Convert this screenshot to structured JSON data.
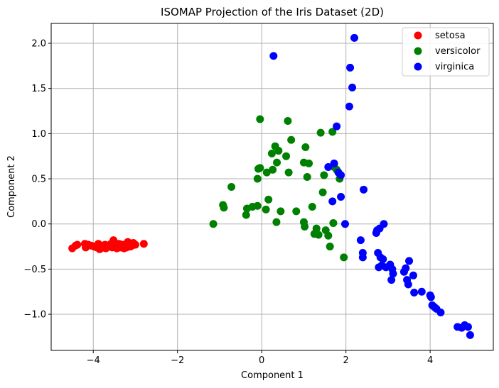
{
  "chart_data": {
    "type": "scatter",
    "title": "ISOMAP Projection of the Iris Dataset (2D)",
    "xlabel": "Component 1",
    "ylabel": "Component 2",
    "xlim": [
      -5.0,
      5.5
    ],
    "ylim": [
      -1.4,
      2.22
    ],
    "xticks": [
      -4,
      -2,
      0,
      2,
      4
    ],
    "xtick_labels": [
      "−4",
      "−2",
      "0",
      "2",
      "4"
    ],
    "yticks": [
      -1.0,
      -0.5,
      0.0,
      0.5,
      1.0,
      1.5,
      2.0
    ],
    "ytick_labels": [
      "−1.0",
      "−0.5",
      "0.0",
      "0.5",
      "1.0",
      "1.5",
      "2.0"
    ],
    "grid": true,
    "legend_position": "top-right",
    "series": [
      {
        "name": "setosa",
        "color": "#ff0000",
        "points": [
          [
            -4.5,
            -0.27
          ],
          [
            -4.42,
            -0.24
          ],
          [
            -4.38,
            -0.23
          ],
          [
            -4.2,
            -0.22
          ],
          [
            -4.18,
            -0.26
          ],
          [
            -4.12,
            -0.23
          ],
          [
            -4.05,
            -0.24
          ],
          [
            -3.98,
            -0.25
          ],
          [
            -3.92,
            -0.26
          ],
          [
            -3.88,
            -0.22
          ],
          [
            -3.85,
            -0.28
          ],
          [
            -3.82,
            -0.27
          ],
          [
            -3.8,
            -0.25
          ],
          [
            -3.78,
            -0.24
          ],
          [
            -3.75,
            -0.26
          ],
          [
            -3.72,
            -0.23
          ],
          [
            -3.7,
            -0.27
          ],
          [
            -3.66,
            -0.25
          ],
          [
            -3.62,
            -0.24
          ],
          [
            -3.58,
            -0.22
          ],
          [
            -3.55,
            -0.26
          ],
          [
            -3.52,
            -0.18
          ],
          [
            -3.5,
            -0.25
          ],
          [
            -3.47,
            -0.23
          ],
          [
            -3.44,
            -0.27
          ],
          [
            -3.42,
            -0.24
          ],
          [
            -3.39,
            -0.22
          ],
          [
            -3.36,
            -0.26
          ],
          [
            -3.33,
            -0.25
          ],
          [
            -3.3,
            -0.23
          ],
          [
            -3.27,
            -0.27
          ],
          [
            -3.24,
            -0.24
          ],
          [
            -3.21,
            -0.26
          ],
          [
            -3.18,
            -0.2
          ],
          [
            -3.15,
            -0.22
          ],
          [
            -3.12,
            -0.25
          ],
          [
            -3.08,
            -0.24
          ],
          [
            -3.05,
            -0.21
          ],
          [
            -3.0,
            -0.23
          ],
          [
            -2.8,
            -0.22
          ]
        ]
      },
      {
        "name": "versicolor",
        "color": "#008000",
        "points": [
          [
            -1.15,
            0.0
          ],
          [
            -0.92,
            0.21
          ],
          [
            -0.9,
            0.18
          ],
          [
            -0.72,
            0.41
          ],
          [
            -0.37,
            0.1
          ],
          [
            -0.35,
            0.17
          ],
          [
            -0.22,
            0.19
          ],
          [
            -0.1,
            0.2
          ],
          [
            -0.1,
            0.5
          ],
          [
            -0.08,
            0.61
          ],
          [
            -0.04,
            0.62
          ],
          [
            -0.04,
            1.16
          ],
          [
            0.1,
            0.16
          ],
          [
            0.12,
            0.57
          ],
          [
            0.16,
            0.27
          ],
          [
            0.24,
            0.78
          ],
          [
            0.26,
            0.6
          ],
          [
            0.32,
            0.86
          ],
          [
            0.35,
            0.02
          ],
          [
            0.36,
            0.68
          ],
          [
            0.4,
            0.81
          ],
          [
            0.45,
            0.14
          ],
          [
            0.58,
            0.75
          ],
          [
            0.62,
            1.14
          ],
          [
            0.64,
            0.57
          ],
          [
            0.7,
            0.93
          ],
          [
            0.82,
            0.14
          ],
          [
            1.0,
            0.68
          ],
          [
            1.0,
            0.02
          ],
          [
            1.02,
            -0.03
          ],
          [
            1.04,
            0.85
          ],
          [
            1.08,
            0.52
          ],
          [
            1.12,
            0.67
          ],
          [
            1.2,
            0.19
          ],
          [
            1.25,
            -0.11
          ],
          [
            1.3,
            -0.05
          ],
          [
            1.35,
            -0.12
          ],
          [
            1.4,
            1.01
          ],
          [
            1.45,
            0.35
          ],
          [
            1.48,
            0.54
          ],
          [
            1.52,
            -0.07
          ],
          [
            1.58,
            -0.13
          ],
          [
            1.62,
            -0.25
          ],
          [
            1.68,
            1.02
          ],
          [
            1.7,
            0.01
          ],
          [
            1.72,
            0.63
          ],
          [
            1.78,
            0.6
          ],
          [
            1.85,
            0.5
          ],
          [
            1.95,
            -0.37
          ]
        ]
      },
      {
        "name": "virginica",
        "color": "#0000ff",
        "points": [
          [
            0.28,
            1.86
          ],
          [
            1.58,
            0.63
          ],
          [
            1.68,
            0.25
          ],
          [
            1.72,
            0.67
          ],
          [
            1.78,
            1.08
          ],
          [
            1.82,
            0.57
          ],
          [
            1.88,
            0.54
          ],
          [
            1.88,
            0.3
          ],
          [
            1.98,
            0.0
          ],
          [
            2.08,
            1.3
          ],
          [
            2.1,
            1.73
          ],
          [
            2.15,
            1.51
          ],
          [
            2.2,
            2.06
          ],
          [
            2.35,
            -0.18
          ],
          [
            2.4,
            -0.32
          ],
          [
            2.4,
            -0.37
          ],
          [
            2.42,
            0.38
          ],
          [
            2.72,
            -0.1
          ],
          [
            2.74,
            -0.07
          ],
          [
            2.76,
            -0.32
          ],
          [
            2.78,
            -0.48
          ],
          [
            2.8,
            -0.05
          ],
          [
            2.82,
            -0.37
          ],
          [
            2.85,
            -0.46
          ],
          [
            2.88,
            -0.39
          ],
          [
            2.9,
            0.0
          ],
          [
            2.95,
            -0.48
          ],
          [
            3.05,
            -0.45
          ],
          [
            3.08,
            -0.62
          ],
          [
            3.1,
            -0.5
          ],
          [
            3.12,
            -0.55
          ],
          [
            3.38,
            -0.53
          ],
          [
            3.42,
            -0.49
          ],
          [
            3.45,
            -0.62
          ],
          [
            3.48,
            -0.67
          ],
          [
            3.5,
            -0.41
          ],
          [
            3.6,
            -0.57
          ],
          [
            3.62,
            -0.76
          ],
          [
            3.8,
            -0.75
          ],
          [
            4.0,
            -0.79
          ],
          [
            4.02,
            -0.81
          ],
          [
            4.05,
            -0.9
          ],
          [
            4.1,
            -0.92
          ],
          [
            4.15,
            -0.94
          ],
          [
            4.25,
            -0.98
          ],
          [
            4.65,
            -1.14
          ],
          [
            4.75,
            -1.15
          ],
          [
            4.82,
            -1.12
          ],
          [
            4.9,
            -1.14
          ],
          [
            4.95,
            -1.23
          ]
        ]
      }
    ]
  }
}
